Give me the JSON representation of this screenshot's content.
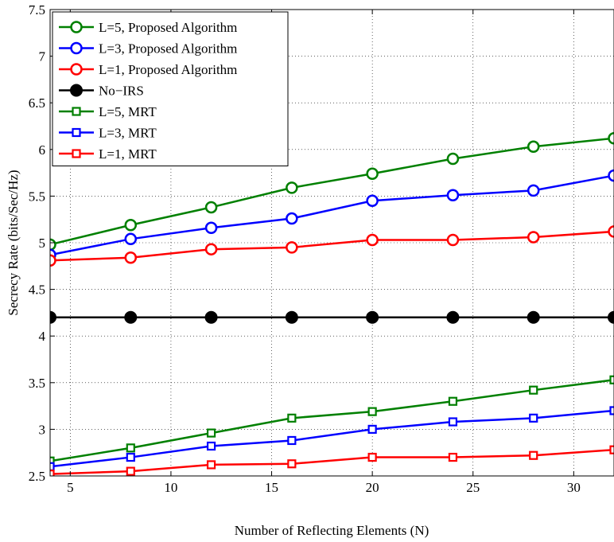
{
  "chart_data": {
    "type": "line",
    "xlabel": "Number of Reflecting Elements (N)",
    "ylabel": "Secrecy Rate (bits/Sec/Hz)",
    "xlim": [
      4,
      32
    ],
    "ylim": [
      2.5,
      7.5
    ],
    "xticks": [
      5,
      10,
      15,
      20,
      25,
      30
    ],
    "yticks": [
      2.5,
      3,
      3.5,
      4,
      4.5,
      5,
      5.5,
      6,
      6.5,
      7,
      7.5
    ],
    "grid": true,
    "legend_position": "top-left",
    "x": [
      4,
      8,
      12,
      16,
      20,
      24,
      28,
      32
    ],
    "series": [
      {
        "name": "L=5, Proposed Algorithm",
        "color": "#008000",
        "marker": "circle-open",
        "values": [
          4.98,
          5.19,
          5.38,
          5.59,
          5.74,
          5.9,
          6.03,
          6.12
        ]
      },
      {
        "name": "L=3, Proposed Algorithm",
        "color": "#0000ff",
        "marker": "circle-open",
        "values": [
          4.87,
          5.04,
          5.16,
          5.26,
          5.45,
          5.51,
          5.56,
          5.72
        ]
      },
      {
        "name": "L=1, Proposed Algorithm",
        "color": "#ff0000",
        "marker": "circle-open",
        "values": [
          4.81,
          4.84,
          4.93,
          4.95,
          5.03,
          5.03,
          5.06,
          5.12
        ]
      },
      {
        "name": "No−IRS",
        "color": "#000000",
        "marker": "circle-filled",
        "values": [
          4.2,
          4.2,
          4.2,
          4.2,
          4.2,
          4.2,
          4.2,
          4.2
        ]
      },
      {
        "name": "L=5, MRT",
        "color": "#008000",
        "marker": "square-open",
        "values": [
          2.66,
          2.8,
          2.96,
          3.12,
          3.19,
          3.3,
          3.42,
          3.53
        ]
      },
      {
        "name": "L=3, MRT",
        "color": "#0000ff",
        "marker": "square-open",
        "values": [
          2.6,
          2.7,
          2.82,
          2.88,
          3.0,
          3.08,
          3.12,
          3.2
        ]
      },
      {
        "name": "L=1, MRT",
        "color": "#ff0000",
        "marker": "square-open",
        "values": [
          2.52,
          2.55,
          2.62,
          2.63,
          2.7,
          2.7,
          2.72,
          2.78
        ]
      }
    ]
  }
}
